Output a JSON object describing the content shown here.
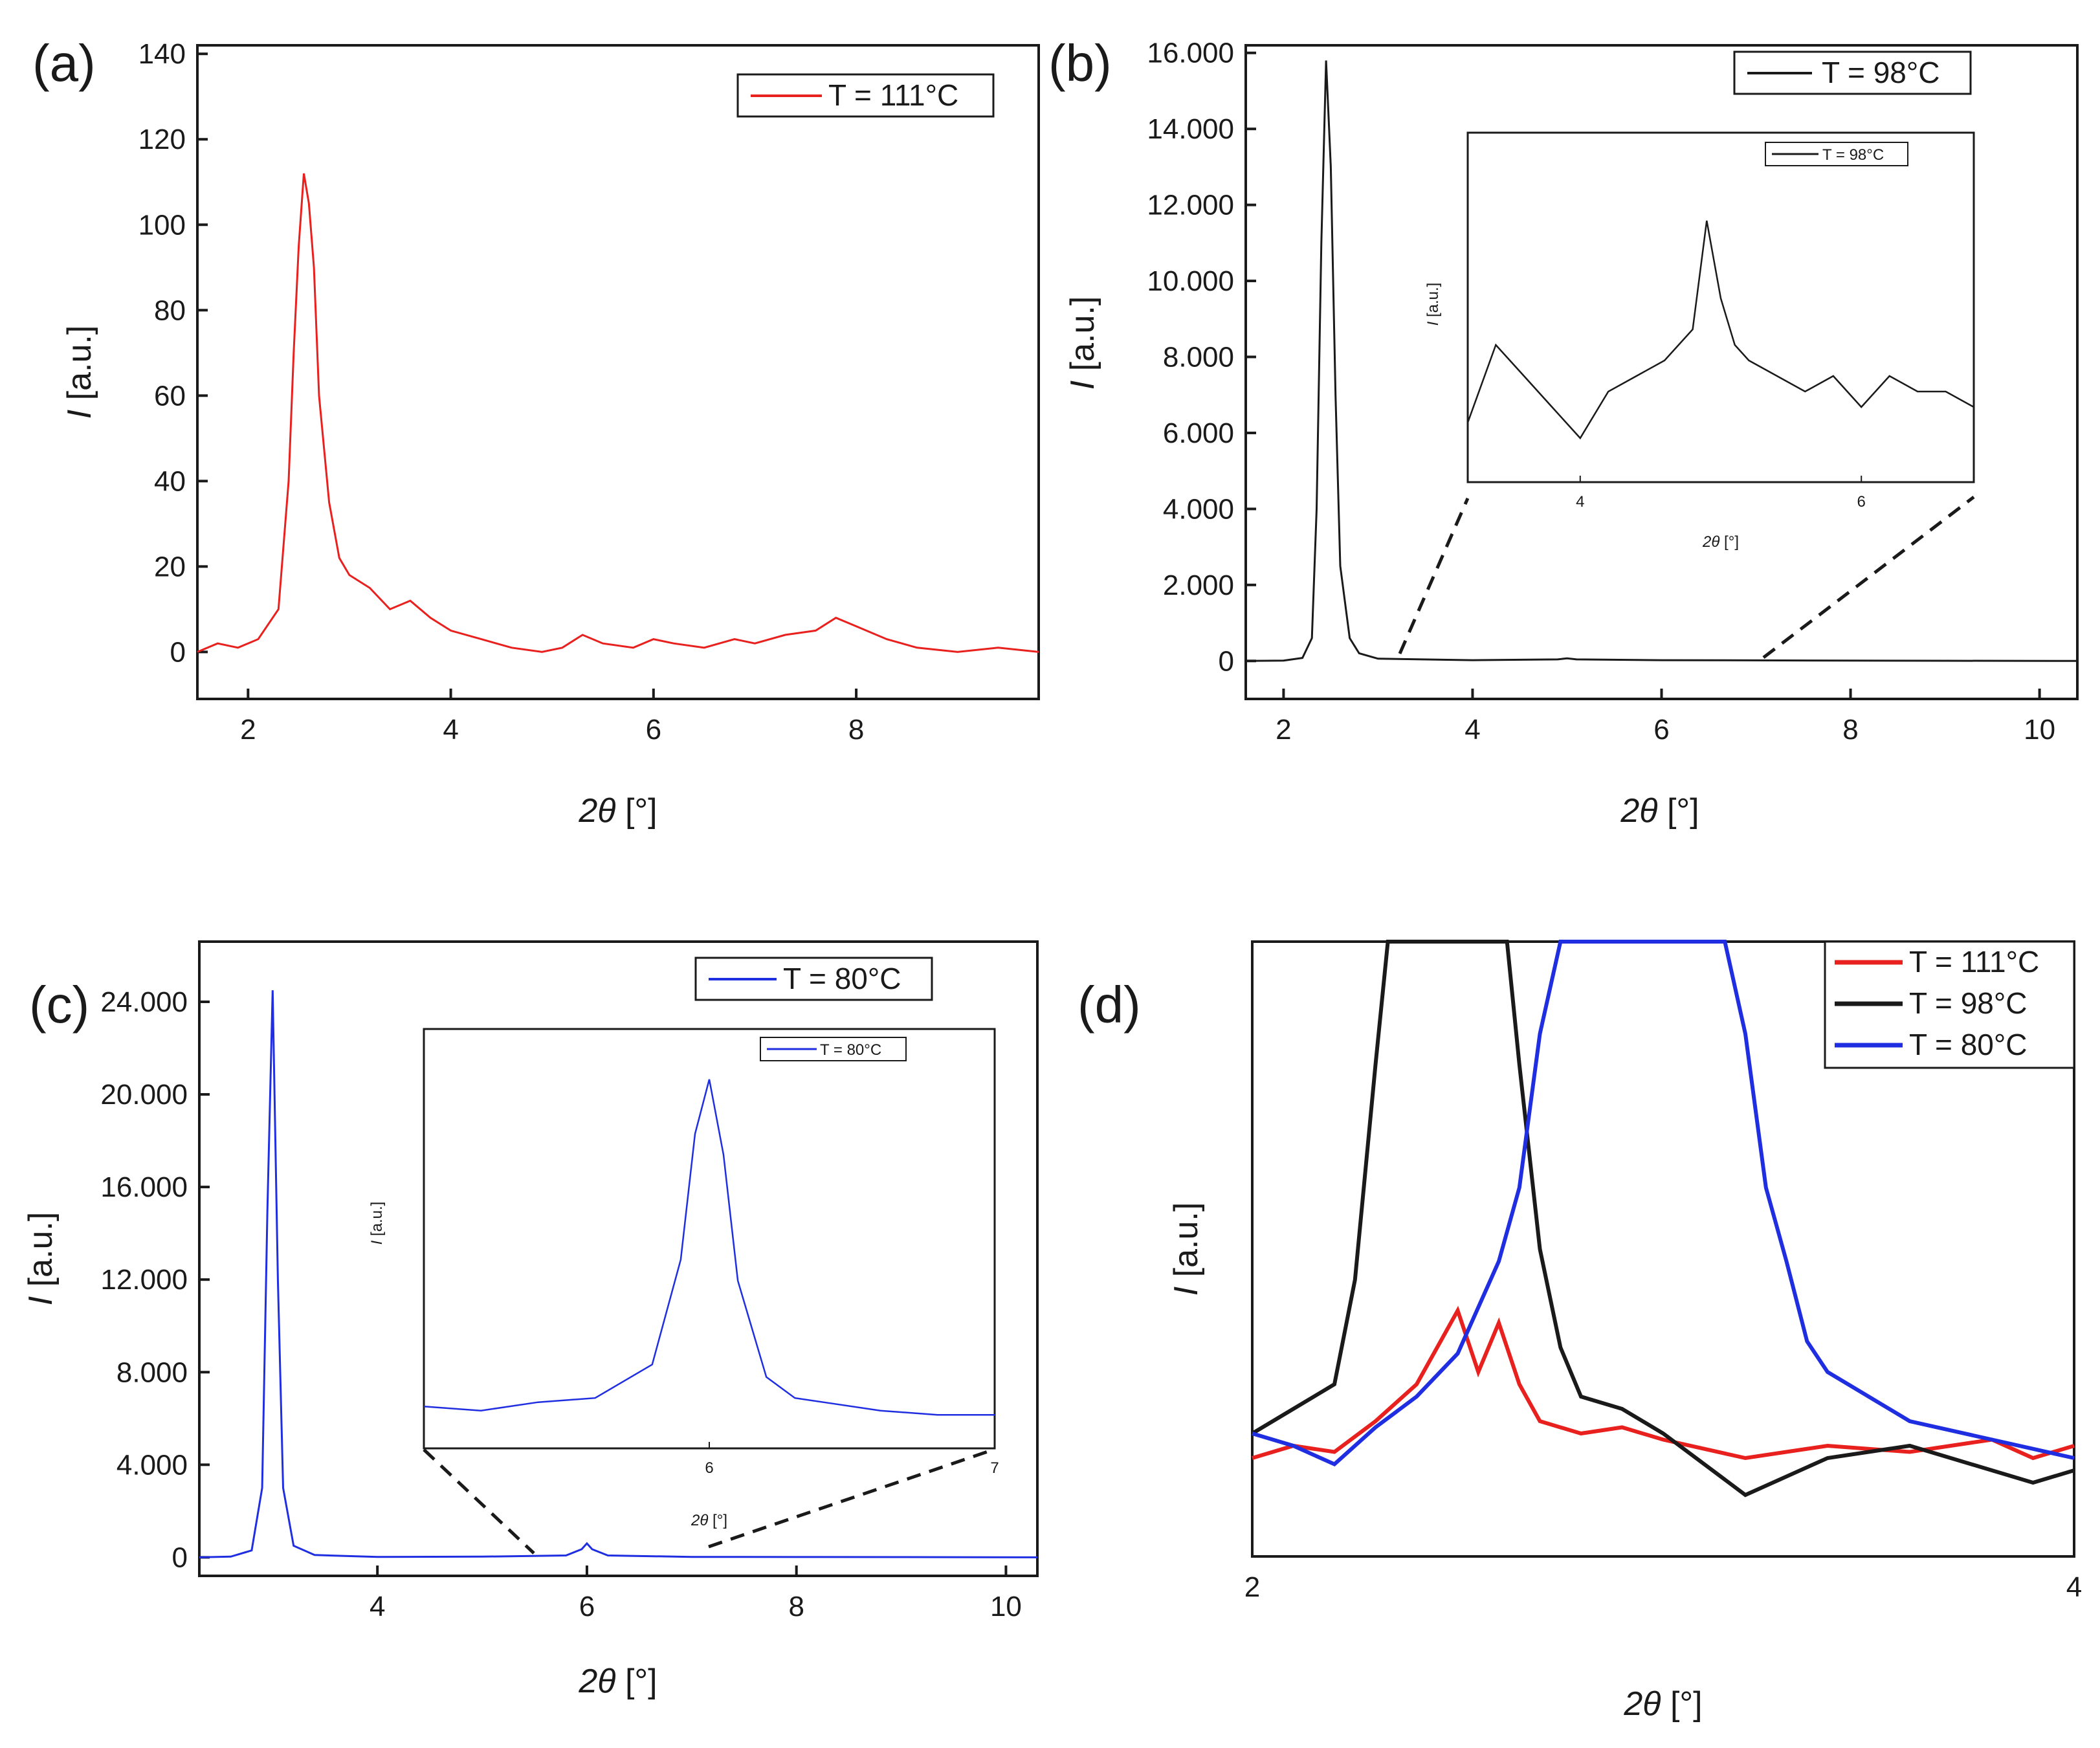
{
  "chart_data": [
    {
      "panel": "(a)",
      "type": "line",
      "xlabel_symbol": "2θ",
      "xlabel_unit": "[°]",
      "ylabel_symbol": "I",
      "ylabel_unit": "[a.u.]",
      "xlim": [
        1.5,
        9.8
      ],
      "ylim": [
        -11,
        142
      ],
      "xticks": [
        "2",
        "4",
        "6",
        "8"
      ],
      "yticks": [
        "0",
        "20",
        "40",
        "60",
        "80",
        "100",
        "120",
        "140"
      ],
      "legend_position": "top-right",
      "series": [
        {
          "name": "T = 111°C",
          "color": "#e8201e",
          "x": [
            1.5,
            1.7,
            1.9,
            2.1,
            2.3,
            2.4,
            2.45,
            2.5,
            2.55,
            2.6,
            2.65,
            2.7,
            2.8,
            2.9,
            3.0,
            3.2,
            3.4,
            3.6,
            3.8,
            4.0,
            4.3,
            4.6,
            4.9,
            5.1,
            5.3,
            5.5,
            5.8,
            6.0,
            6.2,
            6.5,
            6.8,
            7.0,
            7.3,
            7.6,
            7.8,
            8.0,
            8.3,
            8.6,
            9.0,
            9.4,
            9.8
          ],
          "y": [
            0,
            2,
            1,
            3,
            10,
            40,
            70,
            95,
            112,
            105,
            90,
            60,
            35,
            22,
            18,
            15,
            10,
            12,
            8,
            5,
            3,
            1,
            0,
            1,
            4,
            2,
            1,
            3,
            2,
            1,
            3,
            2,
            4,
            5,
            8,
            6,
            3,
            1,
            0,
            1,
            0
          ]
        }
      ]
    },
    {
      "panel": "(b)",
      "type": "line",
      "xlabel_symbol": "2θ",
      "xlabel_unit": "[°]",
      "ylabel_symbol": "I",
      "ylabel_unit": "[a.u.]",
      "xlim": [
        1.6,
        10.4
      ],
      "ylim": [
        -1000,
        16200
      ],
      "xticks": [
        "2",
        "4",
        "6",
        "8",
        "10"
      ],
      "yticks": [
        "0",
        "2.000",
        "4.000",
        "6.000",
        "8.000",
        "10.000",
        "12.000",
        "14.000",
        "16.000"
      ],
      "legend_position": "top-right",
      "series": [
        {
          "name": "T = 98°C",
          "color": "#1a1a1a",
          "x": [
            1.6,
            2.0,
            2.2,
            2.3,
            2.35,
            2.4,
            2.45,
            2.5,
            2.55,
            2.6,
            2.7,
            2.8,
            3.0,
            4.0,
            4.9,
            5.0,
            5.1,
            6.0,
            7.0,
            8.0,
            9.0,
            10.4
          ],
          "y": [
            0,
            10,
            80,
            600,
            4000,
            11000,
            15800,
            13000,
            7000,
            2500,
            600,
            200,
            60,
            20,
            40,
            70,
            40,
            20,
            15,
            10,
            5,
            0
          ]
        }
      ],
      "inset": {
        "legend": "T = 98°C",
        "xlabel_symbol": "2θ",
        "xlabel_unit": "[°]",
        "ylabel_symbol": "I",
        "ylabel_unit": "[a.u.]",
        "xlim": [
          3.2,
          6.8
        ],
        "xticks": [
          "4",
          "6"
        ],
        "x": [
          3.2,
          3.4,
          3.6,
          3.8,
          4.0,
          4.2,
          4.4,
          4.6,
          4.8,
          4.9,
          5.0,
          5.1,
          5.2,
          5.4,
          5.6,
          5.8,
          6.0,
          6.2,
          6.4,
          6.6,
          6.8
        ],
        "y": [
          0.3,
          0.8,
          0.6,
          0.4,
          0.2,
          0.5,
          0.6,
          0.7,
          0.9,
          1.6,
          1.1,
          0.8,
          0.7,
          0.6,
          0.5,
          0.6,
          0.4,
          0.6,
          0.5,
          0.5,
          0.4
        ]
      }
    },
    {
      "panel": "(c)",
      "type": "line",
      "xlabel_symbol": "2θ",
      "xlabel_unit": "[°]",
      "ylabel_symbol": "I",
      "ylabel_unit": "[a.u.]",
      "xlim": [
        2.3,
        10.3
      ],
      "ylim": [
        -800,
        26600
      ],
      "xticks": [
        "4",
        "6",
        "8",
        "10"
      ],
      "yticks": [
        "0",
        "4.000",
        "8.000",
        "12.000",
        "16.000",
        "20.000",
        "24.000"
      ],
      "legend_position": "top-right",
      "series": [
        {
          "name": "T = 80°C",
          "color": "#1f2ee0",
          "x": [
            2.3,
            2.6,
            2.8,
            2.9,
            2.95,
            3.0,
            3.05,
            3.1,
            3.2,
            3.4,
            4.0,
            5.0,
            5.8,
            5.95,
            6.0,
            6.05,
            6.2,
            7.0,
            8.0,
            9.0,
            10.3
          ],
          "y": [
            0,
            30,
            300,
            3000,
            15000,
            24500,
            12000,
            3000,
            500,
            100,
            20,
            30,
            80,
            350,
            600,
            350,
            80,
            20,
            15,
            10,
            0
          ]
        }
      ],
      "inset": {
        "legend": "T = 80°C",
        "xlabel_symbol": "2θ",
        "xlabel_unit": "[°]",
        "ylabel_symbol": "I",
        "ylabel_unit": "[a.u.]",
        "xlim": [
          5.0,
          7.0
        ],
        "xticks": [
          "6",
          "7"
        ],
        "x": [
          5.0,
          5.2,
          5.4,
          5.6,
          5.8,
          5.9,
          5.95,
          6.0,
          6.05,
          6.1,
          6.2,
          6.3,
          6.4,
          6.6,
          6.8,
          7.0
        ],
        "y": [
          0.1,
          0.09,
          0.11,
          0.12,
          0.2,
          0.45,
          0.75,
          0.88,
          0.7,
          0.4,
          0.17,
          0.12,
          0.11,
          0.09,
          0.08,
          0.08
        ]
      }
    },
    {
      "panel": "(d)",
      "type": "line",
      "xlabel_symbol": "2θ",
      "xlabel_unit": "[°]",
      "ylabel_symbol": "I",
      "ylabel_unit": "[a.u.]",
      "xlim": [
        2.0,
        4.0
      ],
      "ylim": [
        0,
        1
      ],
      "xticks": [
        "2",
        "4"
      ],
      "legend_position": "top-right",
      "series": [
        {
          "name": "T = 111°C",
          "color": "#e8201e",
          "x": [
            2.0,
            2.1,
            2.2,
            2.3,
            2.4,
            2.45,
            2.5,
            2.55,
            2.6,
            2.65,
            2.7,
            2.8,
            2.9,
            3.0,
            3.2,
            3.4,
            3.6,
            3.8,
            3.9,
            4.0
          ],
          "y": [
            0.16,
            0.18,
            0.17,
            0.22,
            0.28,
            0.34,
            0.4,
            0.3,
            0.38,
            0.28,
            0.22,
            0.2,
            0.21,
            0.19,
            0.16,
            0.18,
            0.17,
            0.19,
            0.16,
            0.18
          ]
        },
        {
          "name": "T = 98°C",
          "color": "#1a1a1a",
          "x": [
            2.0,
            2.1,
            2.2,
            2.25,
            2.3,
            2.33,
            2.35,
            2.62,
            2.65,
            2.7,
            2.75,
            2.8,
            2.9,
            3.0,
            3.2,
            3.4,
            3.6,
            3.8,
            3.9,
            4.0
          ],
          "y": [
            0.2,
            0.24,
            0.28,
            0.45,
            0.8,
            1.0,
            1.05,
            1.05,
            0.8,
            0.5,
            0.34,
            0.26,
            0.24,
            0.2,
            0.1,
            0.16,
            0.18,
            0.14,
            0.12,
            0.14
          ]
        },
        {
          "name": "T = 80°C",
          "color": "#1f2ee0",
          "x": [
            2.0,
            2.1,
            2.2,
            2.3,
            2.4,
            2.5,
            2.6,
            2.65,
            2.7,
            2.75,
            3.15,
            3.2,
            3.25,
            3.3,
            3.35,
            3.4,
            3.5,
            3.6,
            3.8,
            4.0
          ],
          "y": [
            0.2,
            0.18,
            0.15,
            0.21,
            0.26,
            0.33,
            0.48,
            0.6,
            0.85,
            1.05,
            1.05,
            0.85,
            0.6,
            0.48,
            0.35,
            0.3,
            0.26,
            0.22,
            0.19,
            0.16
          ]
        }
      ]
    }
  ]
}
